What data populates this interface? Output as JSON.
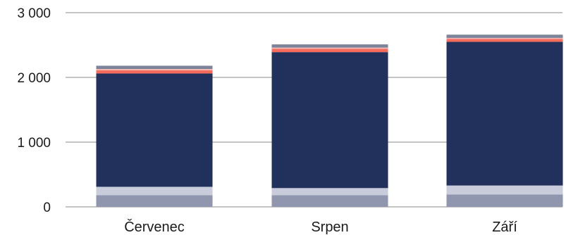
{
  "chart_data": {
    "type": "bar",
    "stacked": true,
    "categories": [
      "Červenec",
      "Srpen",
      "Září"
    ],
    "series": [
      {
        "color": "#8f96ad",
        "values": [
          180,
          180,
          190
        ]
      },
      {
        "color": "#c9ccdb",
        "values": [
          130,
          110,
          140
        ]
      },
      {
        "color": "#22305c",
        "values": [
          1750,
          2100,
          2220
        ]
      },
      {
        "color": "#f56b5c",
        "values": [
          50,
          50,
          45
        ]
      },
      {
        "color": "#f2b7b0",
        "values": [
          20,
          20,
          15
        ]
      },
      {
        "color": "#7d8399",
        "values": [
          50,
          50,
          50
        ]
      }
    ],
    "ylim": [
      0,
      3000
    ],
    "yticks": [
      {
        "value": 0,
        "label": "0"
      },
      {
        "value": 1000,
        "label": "1 000"
      },
      {
        "value": 2000,
        "label": "2 000"
      },
      {
        "value": 3000,
        "label": "3 000"
      }
    ],
    "grid": true,
    "legend": "none",
    "title": "",
    "xlabel": "",
    "ylabel": ""
  }
}
